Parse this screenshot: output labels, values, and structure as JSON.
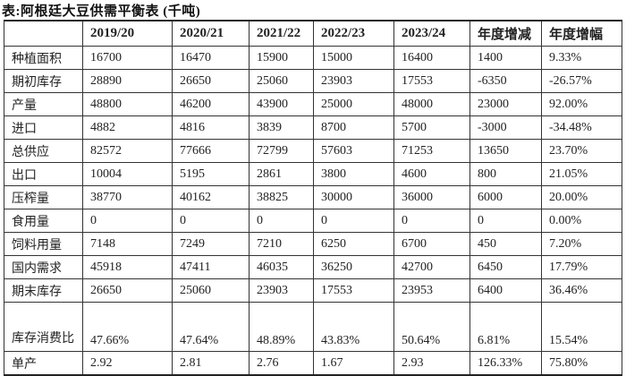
{
  "title": "表:阿根廷大豆供需平衡表 (千吨)",
  "table": {
    "headers": [
      "",
      "2019/20",
      "2020/21",
      "2021/22",
      "2022/23",
      "2023/24",
      "年度增减",
      "年度增幅"
    ],
    "rows": [
      [
        "种植面积",
        "16700",
        "16470",
        "15900",
        "15000",
        "16400",
        "1400",
        "9.33%"
      ],
      [
        "期初库存",
        "28890",
        "26650",
        "25060",
        "23903",
        "17553",
        "-6350",
        "-26.57%"
      ],
      [
        "产量",
        "48800",
        "46200",
        "43900",
        "25000",
        "48000",
        "23000",
        "92.00%"
      ],
      [
        "进口",
        "4882",
        "4816",
        "3839",
        "8700",
        "5700",
        "-3000",
        "-34.48%"
      ],
      [
        "总供应",
        "82572",
        "77666",
        "72799",
        "57603",
        "71253",
        "13650",
        "23.70%"
      ],
      [
        "出口",
        "10004",
        "5195",
        "2861",
        "3800",
        "4600",
        "800",
        "21.05%"
      ],
      [
        "压榨量",
        "38770",
        "40162",
        "38825",
        "30000",
        "36000",
        "6000",
        "20.00%"
      ],
      [
        "食用量",
        "0",
        "0",
        "0",
        "0",
        "0",
        "0",
        "0.00%"
      ],
      [
        "饲料用量",
        "7148",
        "7249",
        "7210",
        "6250",
        "6700",
        "450",
        "7.20%"
      ],
      [
        "国内需求",
        "45918",
        "47411",
        "46035",
        "36250",
        "42700",
        "6450",
        "17.79%"
      ],
      [
        "期末库存",
        "26650",
        "25060",
        "23903",
        "17553",
        "23953",
        "6400",
        "36.46%"
      ],
      [
        "库存消费比",
        "47.66%",
        "47.64%",
        "48.89%",
        "43.83%",
        "50.64%",
        "6.81%",
        "15.54%"
      ],
      [
        "单产",
        "2.92",
        "2.81",
        "2.76",
        "1.67",
        "2.93",
        "126.33%",
        "75.80%"
      ]
    ]
  }
}
